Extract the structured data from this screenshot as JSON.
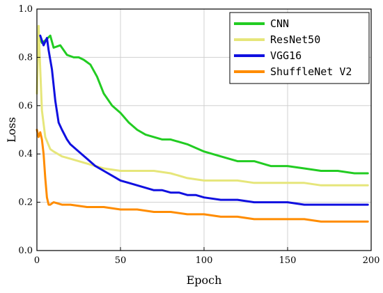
{
  "chart_data": {
    "type": "line",
    "title": "",
    "xlabel": "Epoch",
    "ylabel": "Loss",
    "xlim": [
      0,
      200
    ],
    "ylim": [
      0,
      1.0
    ],
    "xticks": [
      "0",
      "50",
      "100",
      "150",
      "200"
    ],
    "yticks": [
      "0.0",
      "0.2",
      "0.4",
      "0.6",
      "0.8",
      "1.0"
    ],
    "grid": true,
    "legend_position": "top-right",
    "series": [
      {
        "name": "CNN",
        "color": "#22cc22",
        "x": [
          1,
          3,
          5,
          8,
          10,
          14,
          18,
          22,
          25,
          28,
          32,
          36,
          40,
          45,
          50,
          55,
          60,
          65,
          70,
          75,
          80,
          90,
          100,
          110,
          120,
          130,
          140,
          150,
          160,
          170,
          180,
          190,
          198
        ],
        "y": [
          0.89,
          0.86,
          0.87,
          0.89,
          0.84,
          0.85,
          0.81,
          0.8,
          0.8,
          0.79,
          0.77,
          0.72,
          0.65,
          0.6,
          0.57,
          0.53,
          0.5,
          0.48,
          0.47,
          0.46,
          0.46,
          0.44,
          0.41,
          0.39,
          0.37,
          0.37,
          0.35,
          0.35,
          0.34,
          0.33,
          0.33,
          0.32,
          0.32
        ]
      },
      {
        "name": "ResNet50",
        "color": "#e6e67a",
        "x": [
          0,
          1,
          2,
          3,
          5,
          8,
          10,
          15,
          20,
          30,
          40,
          50,
          60,
          70,
          80,
          90,
          100,
          110,
          120,
          130,
          140,
          150,
          160,
          170,
          180,
          190,
          198
        ],
        "y": [
          0.65,
          0.93,
          0.75,
          0.58,
          0.47,
          0.42,
          0.41,
          0.39,
          0.38,
          0.36,
          0.34,
          0.33,
          0.33,
          0.33,
          0.32,
          0.3,
          0.29,
          0.29,
          0.29,
          0.28,
          0.28,
          0.28,
          0.28,
          0.27,
          0.27,
          0.27,
          0.27
        ]
      },
      {
        "name": "VGG16",
        "color": "#1010e0",
        "x": [
          2,
          4,
          6,
          7,
          9,
          11,
          13,
          15,
          18,
          20,
          25,
          30,
          35,
          40,
          45,
          50,
          55,
          60,
          65,
          70,
          75,
          80,
          85,
          90,
          95,
          100,
          110,
          120,
          130,
          140,
          150,
          160,
          170,
          180,
          190,
          198
        ],
        "y": [
          0.89,
          0.85,
          0.88,
          0.83,
          0.75,
          0.62,
          0.53,
          0.5,
          0.46,
          0.44,
          0.41,
          0.38,
          0.35,
          0.33,
          0.31,
          0.29,
          0.28,
          0.27,
          0.26,
          0.25,
          0.25,
          0.24,
          0.24,
          0.23,
          0.23,
          0.22,
          0.21,
          0.21,
          0.2,
          0.2,
          0.2,
          0.19,
          0.19,
          0.19,
          0.19,
          0.19
        ]
      },
      {
        "name": "ShuffleNet V2",
        "color": "#ff8c00",
        "x": [
          0,
          1,
          2,
          3,
          4,
          5,
          6,
          7,
          8,
          10,
          15,
          20,
          30,
          40,
          50,
          60,
          70,
          80,
          90,
          100,
          110,
          120,
          130,
          140,
          150,
          160,
          170,
          180,
          190,
          198
        ],
        "y": [
          0.5,
          0.47,
          0.49,
          0.46,
          0.4,
          0.3,
          0.22,
          0.19,
          0.19,
          0.2,
          0.19,
          0.19,
          0.18,
          0.18,
          0.17,
          0.17,
          0.16,
          0.16,
          0.15,
          0.15,
          0.14,
          0.14,
          0.13,
          0.13,
          0.13,
          0.13,
          0.12,
          0.12,
          0.12,
          0.12
        ]
      }
    ]
  }
}
